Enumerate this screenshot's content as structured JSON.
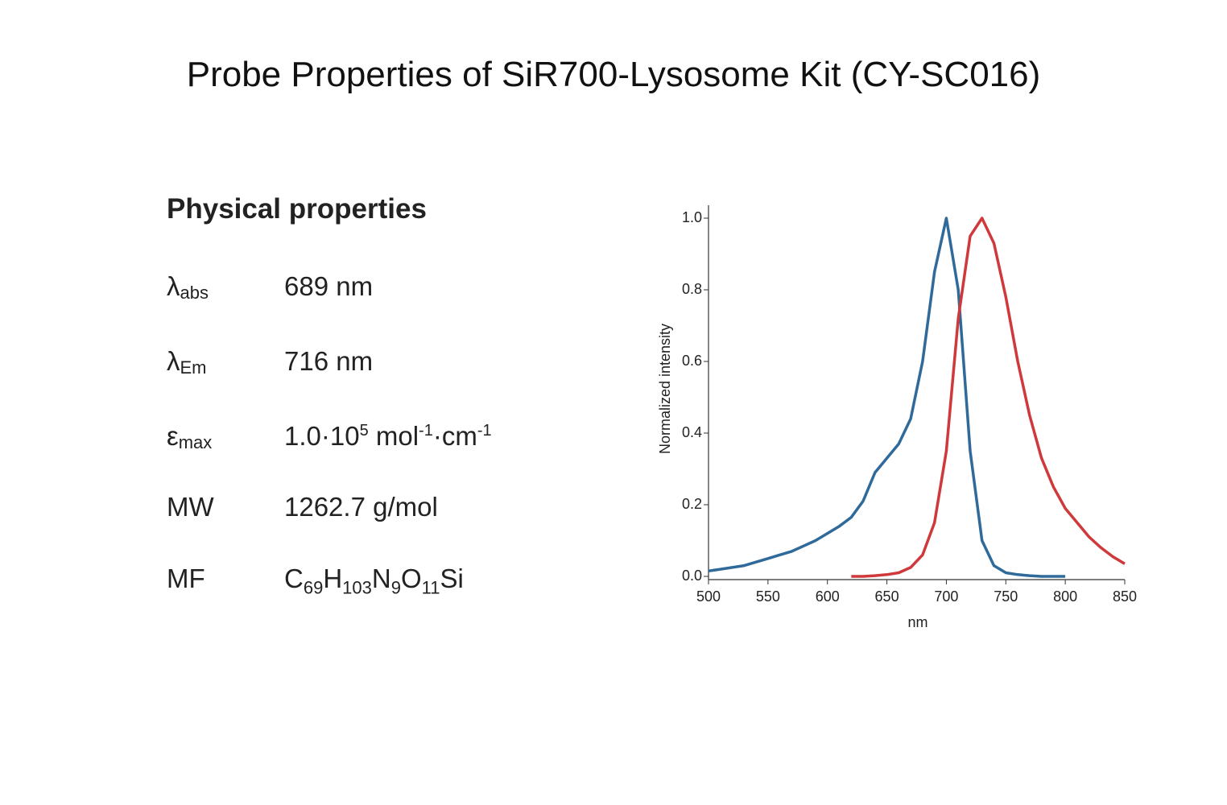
{
  "title": "Probe Properties of SiR700-Lysosome Kit (CY-SC016)",
  "properties": {
    "heading": "Physical properties",
    "rows": [
      {
        "symbol": "λ",
        "sub": "abs",
        "value": [
          "689 nm"
        ]
      },
      {
        "symbol": "λ",
        "sub": "Em",
        "value": [
          "716 nm"
        ]
      },
      {
        "symbol": "ε",
        "sub": "max",
        "value": [
          "1.0·10",
          "5",
          " mol",
          "-1",
          "·cm",
          "-1"
        ]
      },
      {
        "symbol": "MW",
        "value": [
          "1262.7 g/mol"
        ]
      },
      {
        "symbol": "MF",
        "value": [
          "C",
          "69",
          "H",
          "103",
          "N",
          "9",
          "O",
          "11",
          "Si"
        ]
      }
    ]
  },
  "chart_data": {
    "type": "line",
    "xlabel": "nm",
    "ylabel": "Normalized intensity",
    "x": [
      500,
      510,
      520,
      530,
      540,
      550,
      560,
      570,
      580,
      590,
      600,
      610,
      620,
      630,
      640,
      650,
      660,
      670,
      680,
      690,
      700,
      710,
      720,
      730,
      740,
      750,
      760,
      770,
      780,
      790,
      800,
      810,
      820,
      830,
      840,
      850
    ],
    "series": [
      {
        "color": "#2f6a9a",
        "values": [
          0.015,
          0.02,
          0.025,
          0.03,
          0.04,
          0.05,
          0.06,
          0.07,
          0.085,
          0.1,
          0.12,
          0.14,
          0.165,
          0.21,
          0.29,
          0.33,
          0.37,
          0.44,
          0.6,
          0.85,
          1.0,
          0.8,
          0.35,
          0.1,
          0.03,
          0.01,
          0.005,
          0.002,
          0,
          0,
          0,
          null,
          null,
          null,
          null,
          null
        ]
      },
      {
        "color": "#d0393b",
        "values": [
          null,
          null,
          null,
          null,
          null,
          null,
          null,
          null,
          null,
          null,
          null,
          null,
          0,
          0,
          0.002,
          0.005,
          0.01,
          0.025,
          0.06,
          0.15,
          0.35,
          0.72,
          0.95,
          1.0,
          0.93,
          0.78,
          0.6,
          0.45,
          0.33,
          0.25,
          0.19,
          0.15,
          0.11,
          0.08,
          0.055,
          0.035
        ]
      }
    ],
    "xlim": [
      500,
      850
    ],
    "xticks": [
      500,
      550,
      600,
      650,
      700,
      750,
      800,
      850
    ],
    "ylim": [
      0,
      1
    ],
    "yticks": [
      {
        "value": 0,
        "label": "0.0"
      },
      {
        "value": 0.2,
        "label": "0.2"
      },
      {
        "value": 0.4,
        "label": "0.4"
      },
      {
        "value": 0.6,
        "label": "0.6"
      },
      {
        "value": 0.8,
        "label": "0.8"
      },
      {
        "value": 1,
        "label": "1.0"
      }
    ]
  }
}
